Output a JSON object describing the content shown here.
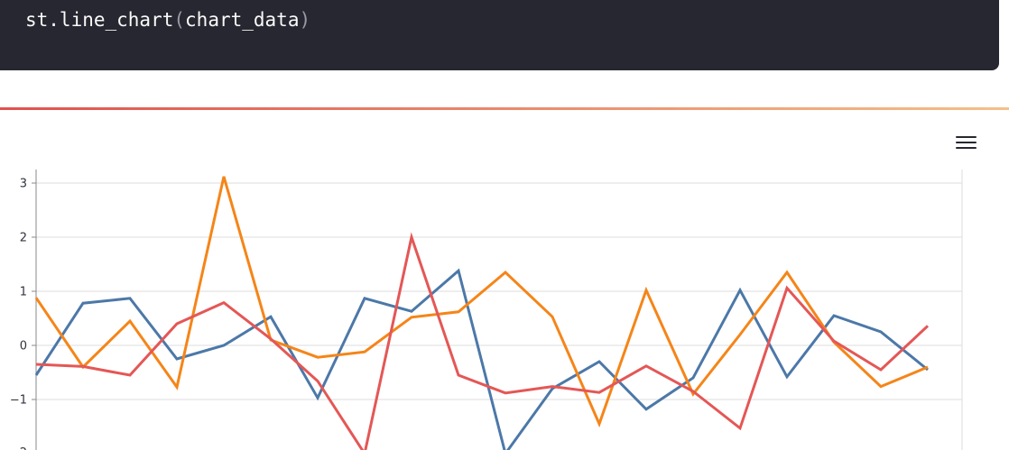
{
  "code": {
    "fn": "st.line_chart",
    "open_paren": "(",
    "arg": "chart_data",
    "close_paren": ")"
  },
  "decoration": {
    "gradient": [
      "#e0514f",
      "#f4c089"
    ]
  },
  "chart_menu": {
    "icon": "hamburger-menu-icon"
  },
  "chart_data": {
    "type": "line",
    "x": [
      0,
      1,
      2,
      3,
      4,
      5,
      6,
      7,
      8,
      9,
      10,
      11,
      12,
      13,
      14,
      15,
      16,
      17,
      18,
      19
    ],
    "ylim": [
      -1.9,
      3.2
    ],
    "yticks": [
      3,
      2,
      1,
      0,
      -1
    ],
    "ytick_labels": [
      "3",
      "2",
      "1",
      "0",
      "−1"
    ],
    "grid": true,
    "series": [
      {
        "color": "#4c78a8",
        "values": [
          -0.55,
          0.78,
          0.87,
          -0.25,
          0.0,
          0.53,
          -0.97,
          0.87,
          0.63,
          1.38,
          -2.0,
          -0.8,
          -0.3,
          -1.18,
          -0.6,
          1.02,
          -0.58,
          0.55,
          0.25,
          -0.45
        ]
      },
      {
        "color": "#f58518",
        "values": [
          0.88,
          -0.4,
          0.45,
          -0.77,
          3.12,
          0.1,
          -0.22,
          -0.12,
          0.52,
          0.62,
          1.35,
          0.53,
          -1.45,
          1.02,
          -0.9,
          0.2,
          1.35,
          0.06,
          -0.76,
          -0.4
        ]
      },
      {
        "color": "#e45756",
        "values": [
          -0.35,
          -0.39,
          -0.55,
          0.4,
          0.79,
          0.12,
          -0.66,
          -2.0,
          2.0,
          -0.55,
          -0.88,
          -0.76,
          -0.87,
          -0.38,
          -0.85,
          -1.53,
          1.06,
          0.08,
          -0.45,
          0.36
        ]
      }
    ]
  }
}
